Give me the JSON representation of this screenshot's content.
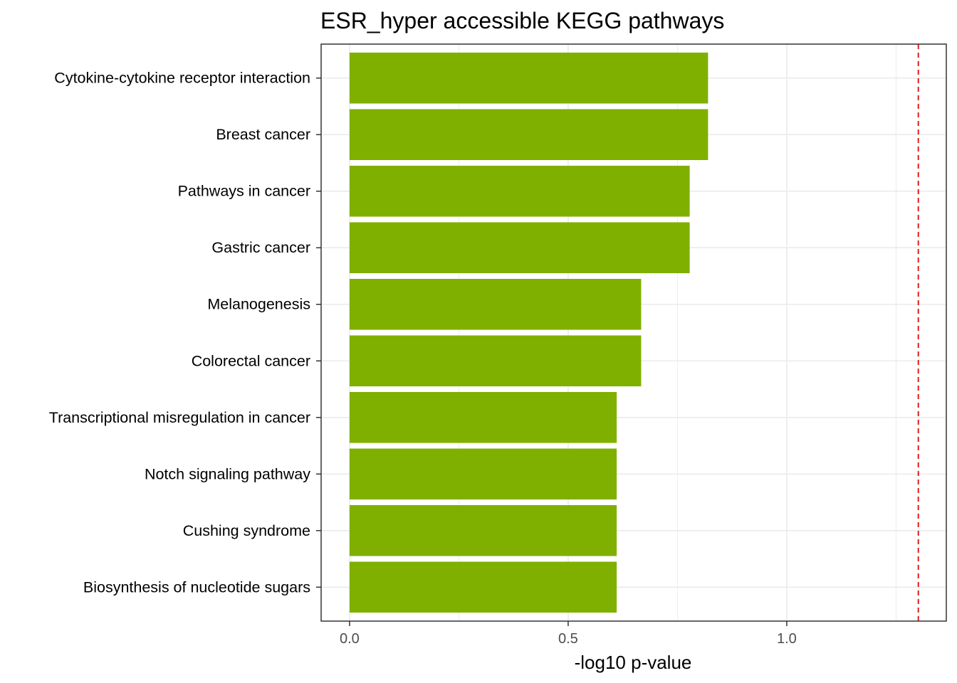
{
  "chart_data": {
    "type": "bar",
    "orientation": "horizontal",
    "title": "ESR_hyper accessible KEGG pathways",
    "xlabel": "-log10 p-value",
    "ylabel": "",
    "categories": [
      "Cytokine-cytokine receptor interaction",
      "Breast cancer",
      "Pathways in cancer",
      "Gastric cancer",
      "Melanogenesis",
      "Colorectal cancer",
      "Transcriptional misregulation in cancer",
      "Notch signaling pathway",
      "Cushing syndrome",
      "Biosynthesis of nucleotide sugars"
    ],
    "values": [
      0.82,
      0.82,
      0.778,
      0.778,
      0.667,
      0.667,
      0.611,
      0.611,
      0.611,
      0.611
    ],
    "xlim": [
      -0.065,
      1.365
    ],
    "xticks": [
      0.0,
      0.5,
      1.0
    ],
    "xtick_labels": [
      "0.0",
      "0.5",
      "1.0"
    ],
    "reference_line": {
      "value": 1.301,
      "style": "dashed",
      "color": "#e31a1c"
    },
    "bar_color": "#7fb000",
    "grid": true,
    "legend": "none"
  }
}
